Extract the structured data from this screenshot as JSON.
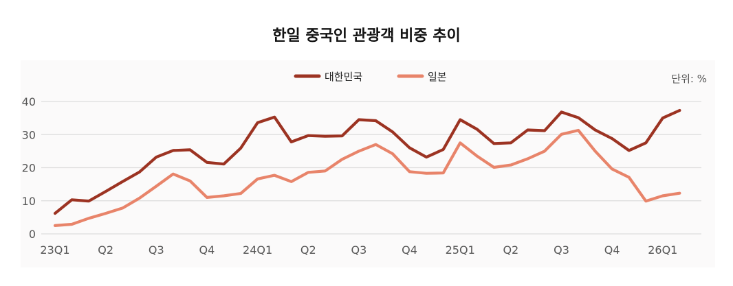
{
  "chart_data": {
    "type": "line",
    "title": "한일 중국인 관광객 비중 추이",
    "unit": "단위: %",
    "ylim": [
      0,
      40
    ],
    "yticks": [
      0,
      10,
      20,
      30,
      40
    ],
    "grid": true,
    "legend_placement": "top-center",
    "x_tick_labels": [
      "23Q1",
      "Q2",
      "Q3",
      "Q4",
      "24Q1",
      "Q2",
      "Q3",
      "Q4",
      "25Q1",
      "Q2",
      "Q3",
      "Q4",
      "26Q1"
    ],
    "points_per_tick": 3,
    "series": [
      {
        "name": "대한민국",
        "color": "#9c3322",
        "values": [
          6.2,
          10.3,
          9.9,
          12.8,
          15.8,
          18.7,
          23.2,
          25.2,
          25.4,
          21.6,
          21.1,
          25.9,
          33.6,
          35.3,
          27.8,
          29.7,
          29.5,
          29.6,
          34.5,
          34.2,
          30.8,
          26.0,
          23.2,
          25.5,
          34.5,
          31.6,
          27.3,
          27.5,
          31.4,
          31.2,
          36.8,
          35.1,
          31.4,
          28.8,
          25.2,
          27.5,
          35.0,
          37.3
        ]
      },
      {
        "name": "일본",
        "color": "#e8846a",
        "values": [
          2.5,
          2.9,
          4.7,
          6.2,
          7.8,
          10.8,
          14.4,
          18.1,
          16.0,
          11.0,
          11.5,
          12.2,
          16.6,
          17.7,
          15.8,
          18.6,
          19.0,
          22.5,
          25.0,
          27.0,
          24.2,
          18.8,
          18.3,
          18.4,
          27.5,
          23.5,
          20.1,
          20.8,
          22.7,
          25.0,
          30.1,
          31.3,
          25.0,
          19.6,
          17.1,
          9.9,
          11.5,
          12.3
        ]
      }
    ]
  }
}
